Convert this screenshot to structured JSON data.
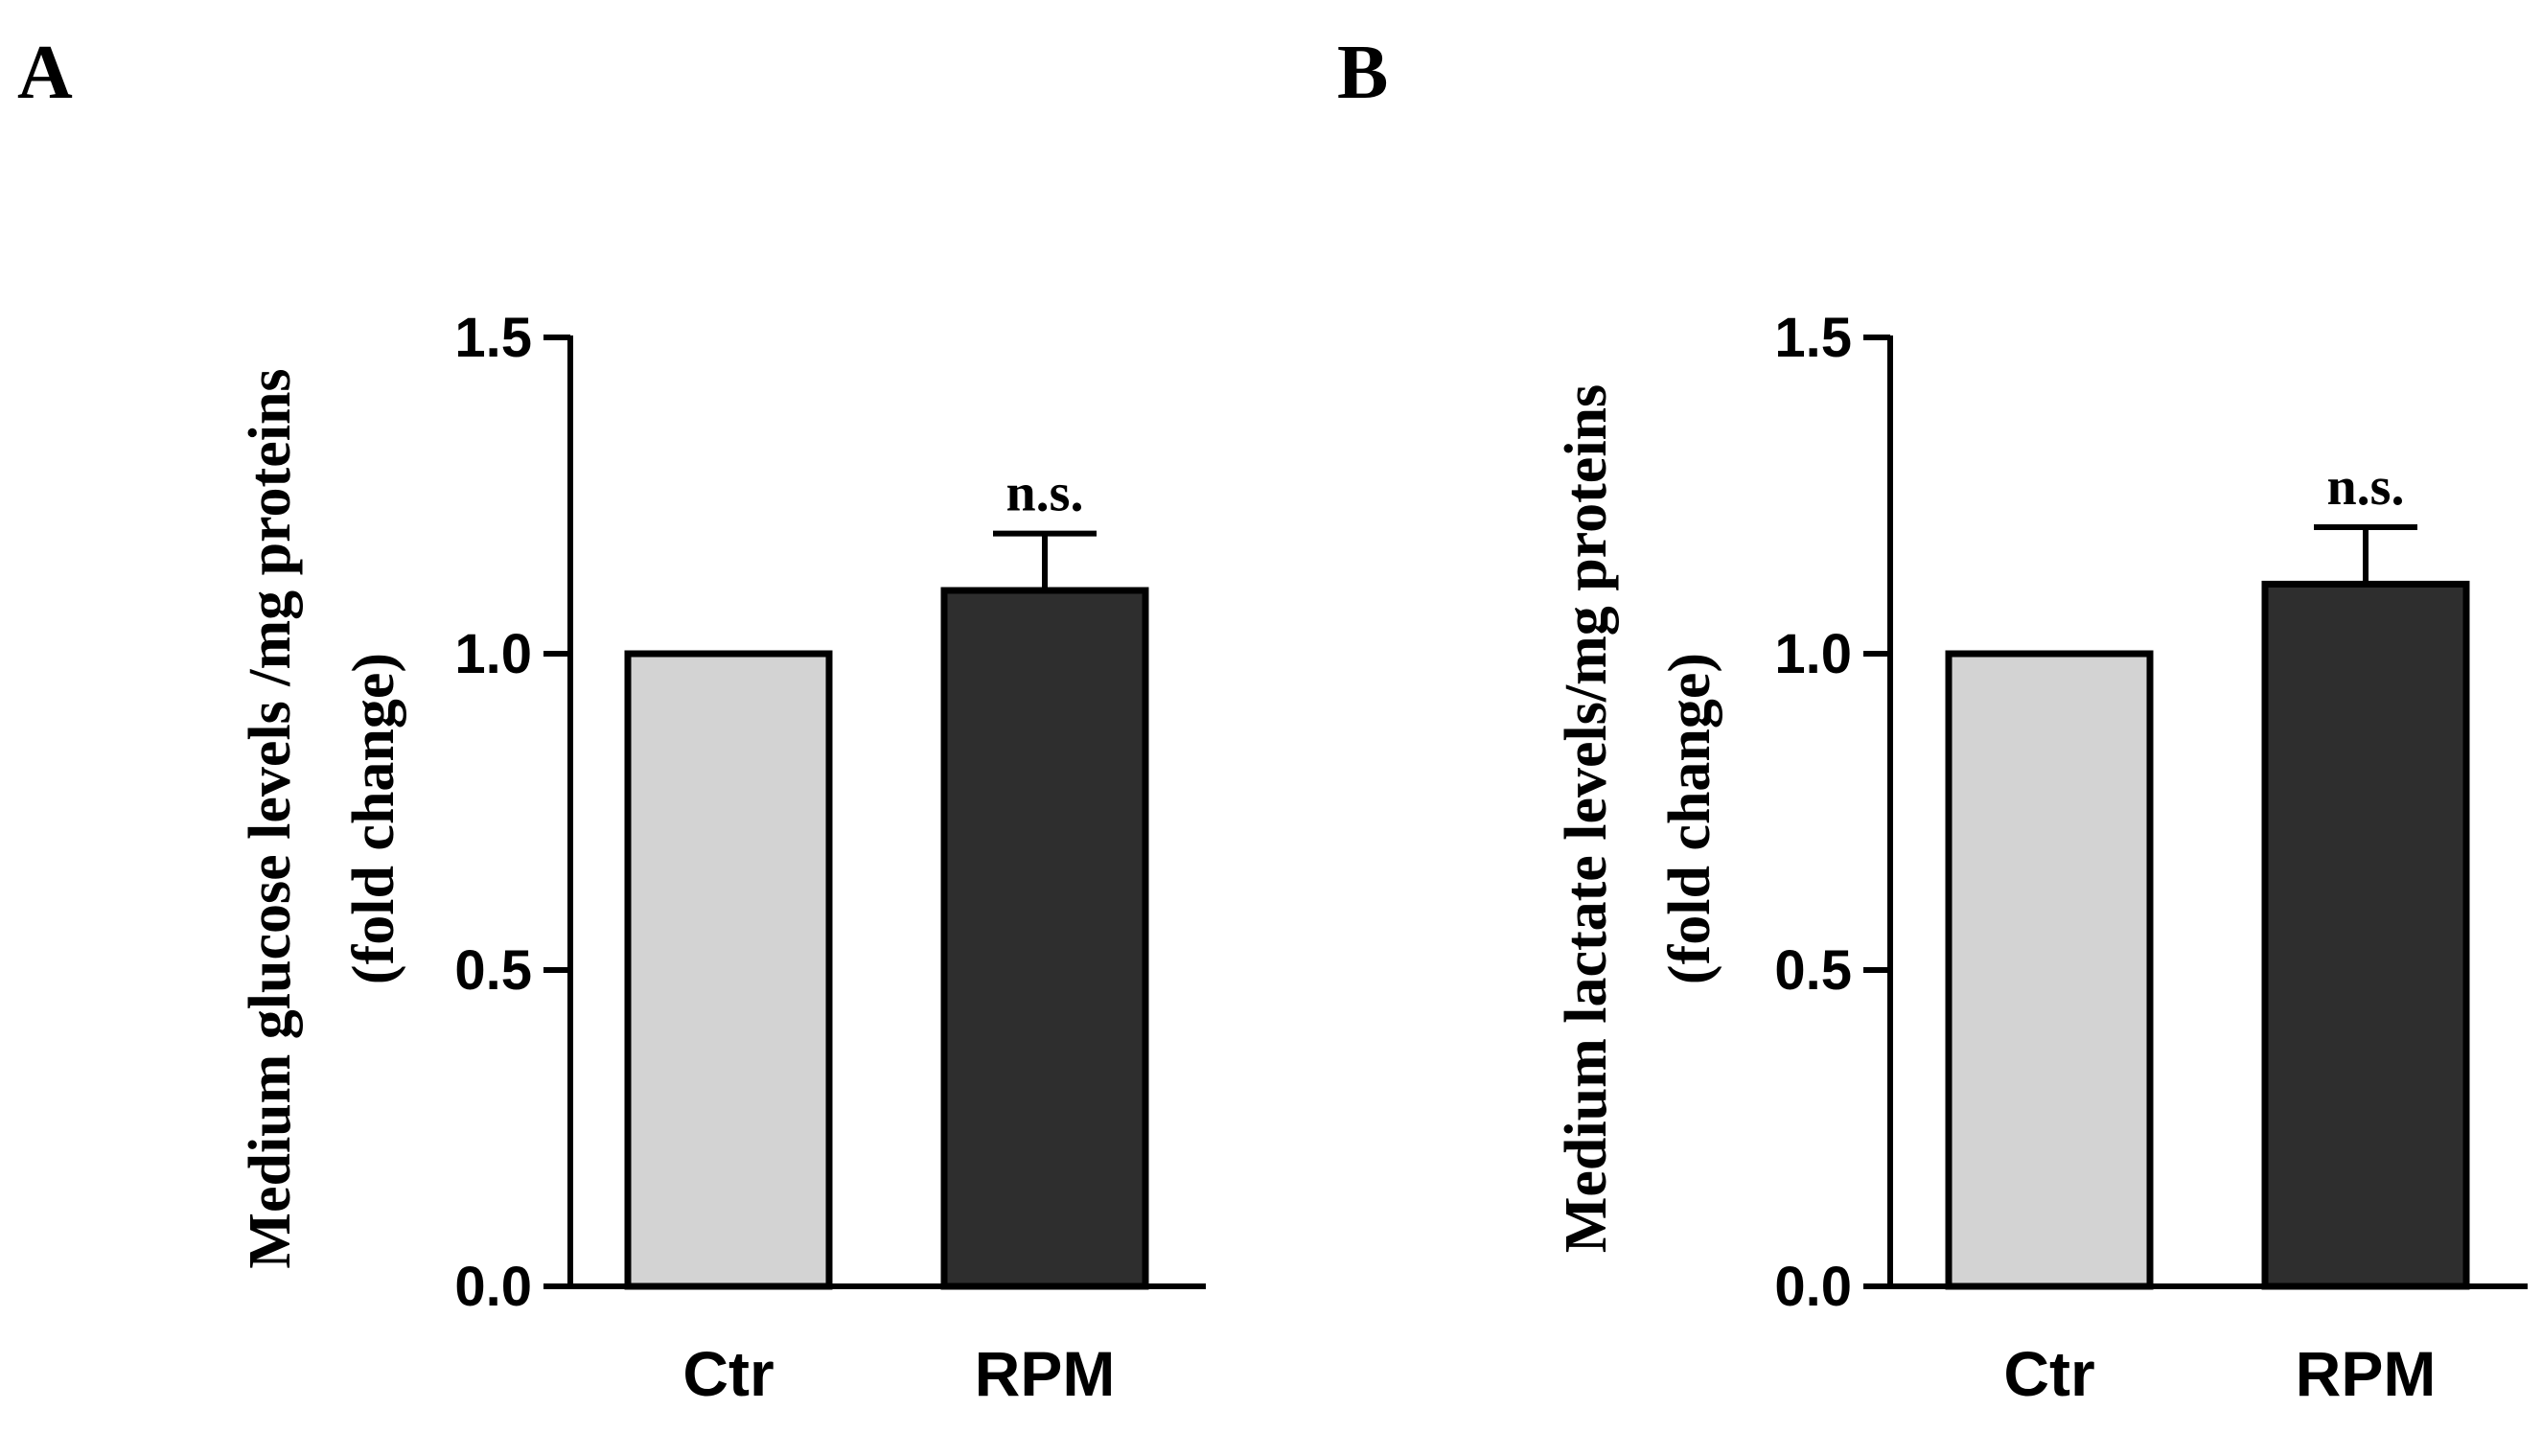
{
  "chart_data": [
    {
      "panel_label": "A",
      "type": "bar",
      "categories": [
        "Ctr",
        "RPM"
      ],
      "values": [
        1.0,
        1.1
      ],
      "error_bars": [
        0,
        0.09
      ],
      "annotations": [
        "",
        "n.s."
      ],
      "bar_colors": [
        "#d3d3d3",
        "#2e2e2e"
      ],
      "ylabel_line1": "Medium glucose levels /mg proteins",
      "ylabel_line2": "(fold change)",
      "ylim": [
        0,
        1.5
      ],
      "yticks": [
        "0.0",
        "0.5",
        "1.0",
        "1.5"
      ],
      "grid": false
    },
    {
      "panel_label": "B",
      "type": "bar",
      "categories": [
        "Ctr",
        "RPM"
      ],
      "values": [
        1.0,
        1.11
      ],
      "error_bars": [
        0,
        0.09
      ],
      "annotations": [
        "",
        "n.s."
      ],
      "bar_colors": [
        "#d3d3d3",
        "#2e2e2e"
      ],
      "ylabel_line1": "Medium lactate levels/mg proteins",
      "ylabel_line2": "(fold change)",
      "ylim": [
        0,
        1.5
      ],
      "yticks": [
        "0.0",
        "0.5",
        "1.0",
        "1.5"
      ],
      "grid": false
    }
  ]
}
